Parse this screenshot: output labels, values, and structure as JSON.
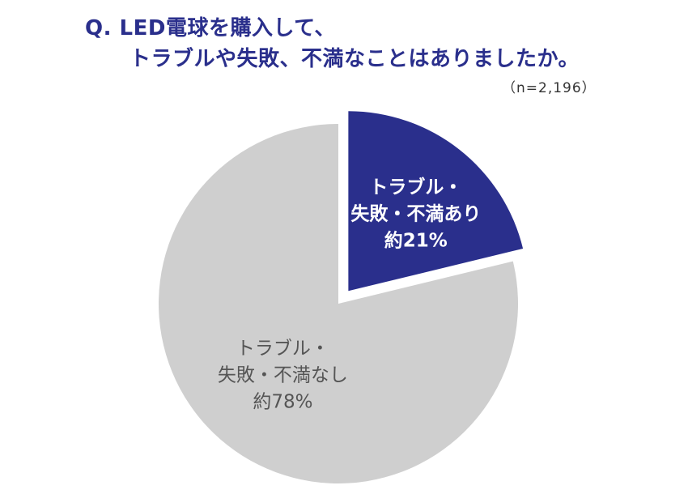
{
  "question": {
    "line1": "Q. LED電球を購入して、",
    "line2": "トラブルや失敗、不満なことはありましたか。"
  },
  "sample": "（n=2,196）",
  "colors": {
    "title": "#2a2f8c",
    "slice_yes": "#2a2f8c",
    "slice_no": "#cfcfcf",
    "label_yes": "#ffffff",
    "label_no": "#555555"
  },
  "chart_data": {
    "type": "pie",
    "title": "Q. LED電球を購入して、トラブルや失敗、不満なことはありましたか。",
    "unit": "%",
    "slices": [
      {
        "name": "トラブル・失敗・不満あり",
        "value": 21,
        "exploded": true,
        "label_lines": [
          "トラブル・",
          "失敗・不満あり",
          "約21%"
        ]
      },
      {
        "name": "トラブル・失敗・不満なし",
        "value": 78,
        "exploded": false,
        "label_lines": [
          "トラブル・",
          "失敗・不満なし",
          "約78%"
        ]
      }
    ]
  }
}
